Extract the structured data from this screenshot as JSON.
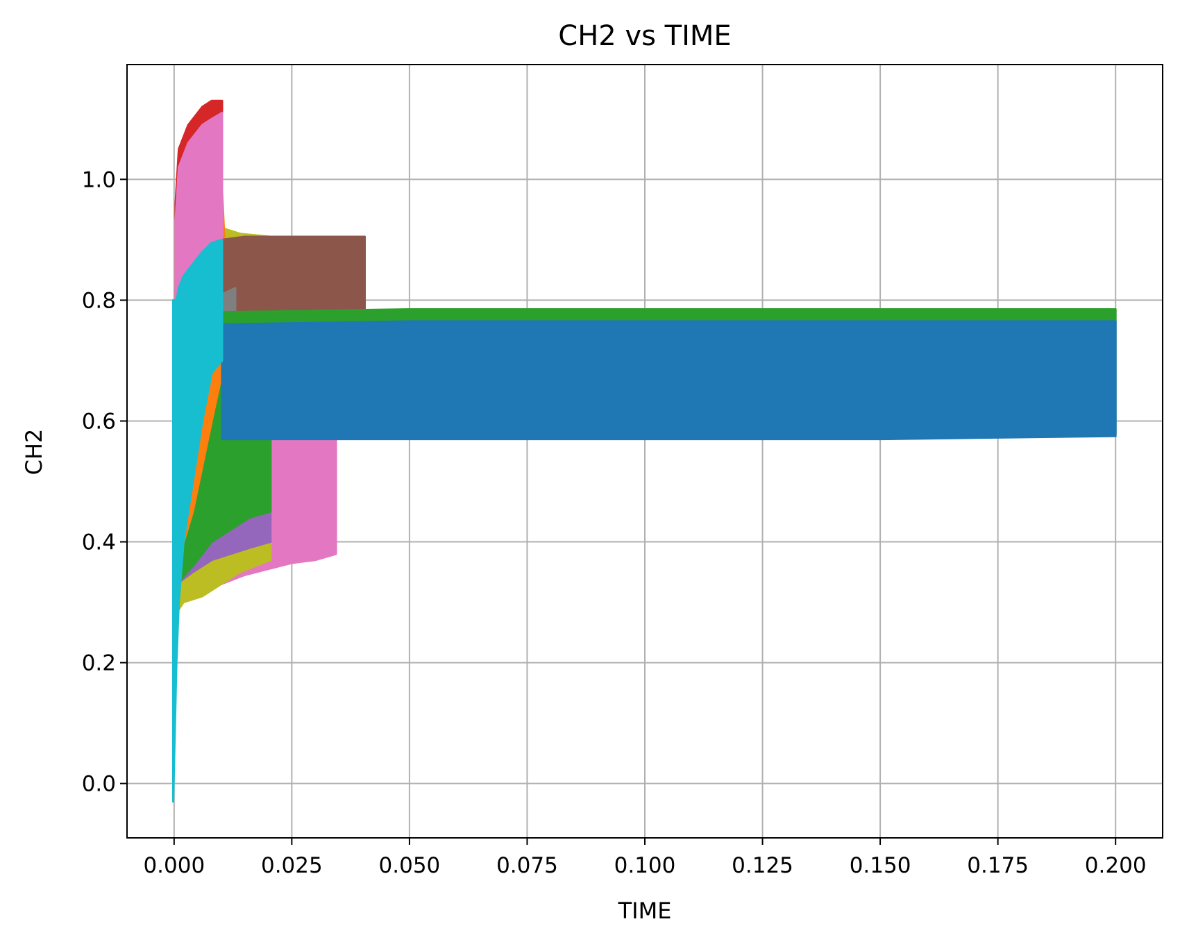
{
  "chart_data": {
    "type": "area",
    "title": "CH2 vs TIME",
    "xlabel": "TIME",
    "ylabel": "CH2",
    "xlim": [
      -0.01,
      0.21
    ],
    "ylim": [
      -0.09,
      1.19
    ],
    "xticks": [
      0.0,
      0.025,
      0.05,
      0.075,
      0.1,
      0.125,
      0.15,
      0.175,
      0.2
    ],
    "xtick_labels": [
      "0.000",
      "0.025",
      "0.050",
      "0.075",
      "0.100",
      "0.125",
      "0.150",
      "0.175",
      "0.200"
    ],
    "yticks": [
      0.0,
      0.2,
      0.4,
      0.6,
      0.8,
      1.0
    ],
    "ytick_labels": [
      "0.0",
      "0.2",
      "0.4",
      "0.6",
      "0.8",
      "1.0"
    ],
    "grid": true,
    "legend": "none",
    "series": [
      {
        "color": "#e377c2",
        "x": [
          0.0003,
          0.002,
          0.006,
          0.01,
          0.015,
          0.02,
          0.025,
          0.03,
          0.0344
        ],
        "lower": [
          0.3,
          0.31,
          0.32,
          0.33,
          0.345,
          0.355,
          0.365,
          0.37,
          0.38
        ],
        "upper": [
          0.83,
          0.8,
          0.72,
          0.66,
          0.64,
          0.62,
          0.6,
          0.58,
          0.58
        ]
      },
      {
        "color": "#bcbd22",
        "x": [
          0.0003,
          0.002,
          0.006,
          0.01,
          0.014,
          0.0205
        ],
        "lower": [
          0.28,
          0.3,
          0.31,
          0.33,
          0.35,
          0.37
        ],
        "upper": [
          0.91,
          0.92,
          0.92,
          0.92,
          0.91,
          0.905
        ]
      },
      {
        "color": "#8c564b",
        "x": [
          0.0005,
          0.003,
          0.006,
          0.0102
        ],
        "lower": [
          0.34,
          0.38,
          0.5,
          0.7
        ],
        "upper": [
          0.92,
          0.98,
          1.02,
          1.04
        ]
      },
      {
        "color": "#9467bd",
        "x": [
          0.0005,
          0.004,
          0.008,
          0.012,
          0.016,
          0.0205
        ],
        "lower": [
          0.33,
          0.35,
          0.37,
          0.38,
          0.39,
          0.4
        ],
        "upper": [
          0.55,
          0.6,
          0.63,
          0.64,
          0.65,
          0.65
        ]
      },
      {
        "color": "#2ca02c",
        "x": [
          0.0005,
          0.004,
          0.008,
          0.012,
          0.016,
          0.0205
        ],
        "lower": [
          0.33,
          0.36,
          0.4,
          0.42,
          0.44,
          0.45
        ],
        "upper": [
          0.96,
          0.99,
          1.0,
          0.68,
          0.67,
          0.67
        ]
      },
      {
        "color": "#ff7f0e",
        "x": [
          0.0005,
          0.004,
          0.008,
          0.0102,
          0.012
        ],
        "lower": [
          0.36,
          0.45,
          0.6,
          0.68,
          0.68
        ],
        "upper": [
          0.9,
          0.95,
          0.98,
          0.98,
          0.69
        ]
      },
      {
        "color": "#d62728",
        "x": [
          0.0003,
          0.001,
          0.003,
          0.006,
          0.008,
          0.0102
        ],
        "lower": [
          0.75,
          0.8,
          0.85,
          0.88,
          0.9,
          0.9
        ],
        "upper": [
          0.96,
          1.05,
          1.09,
          1.12,
          1.13,
          1.13
        ]
      },
      {
        "color": "#e377c2",
        "x": [
          0.0003,
          0.001,
          0.003,
          0.006,
          0.008,
          0.0102
        ],
        "lower": [
          0.6,
          0.7,
          0.8,
          0.85,
          0.88,
          0.88
        ],
        "upper": [
          0.93,
          1.02,
          1.06,
          1.09,
          1.1,
          1.11
        ]
      },
      {
        "color": "#8c564b",
        "x": [
          0.0102,
          0.015,
          0.02,
          0.025,
          0.03,
          0.035,
          0.0405
        ],
        "lower": [
          0.7,
          0.72,
          0.73,
          0.73,
          0.735,
          0.735,
          0.74
        ],
        "upper": [
          0.9,
          0.905,
          0.905,
          0.905,
          0.905,
          0.905,
          0.905
        ]
      },
      {
        "color": "#7f7f7f",
        "x": [
          0.0102,
          0.013
        ],
        "lower": [
          0.76,
          0.78
        ],
        "upper": [
          0.81,
          0.82
        ]
      },
      {
        "color": "#2ca02c",
        "x": [
          0.0102,
          0.05,
          0.1,
          0.15,
          0.2
        ],
        "lower": [
          0.58,
          0.58,
          0.58,
          0.58,
          0.58
        ],
        "upper": [
          0.78,
          0.785,
          0.785,
          0.785,
          0.785
        ]
      },
      {
        "color": "#1f77b4",
        "x": [
          0.0102,
          0.05,
          0.1,
          0.15,
          0.2
        ],
        "lower": [
          0.57,
          0.57,
          0.57,
          0.57,
          0.575
        ],
        "upper": [
          0.76,
          0.765,
          0.765,
          0.765,
          0.765
        ]
      },
      {
        "color": "#17becf",
        "x": [
          -0.0002,
          0.0005,
          0.001,
          0.002,
          0.004,
          0.006,
          0.008,
          0.0102
        ],
        "lower": [
          -0.03,
          0.2,
          0.3,
          0.4,
          0.5,
          0.6,
          0.68,
          0.7
        ],
        "upper": [
          0.8,
          0.8,
          0.82,
          0.84,
          0.86,
          0.88,
          0.895,
          0.9
        ]
      }
    ]
  }
}
